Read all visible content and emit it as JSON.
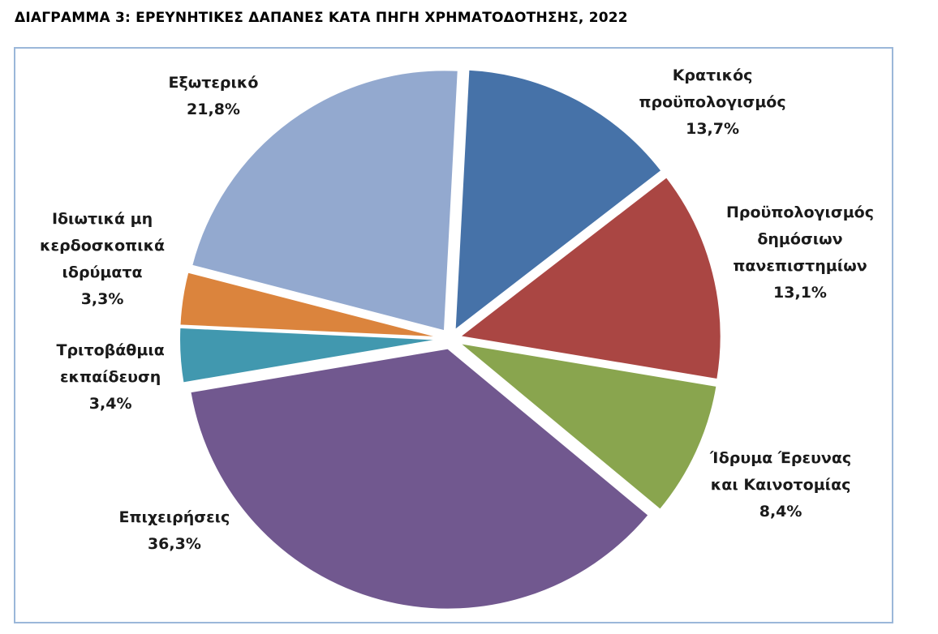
{
  "title": "ΔΙΑΓΡΑΜΜΑ 3:  ΕΡΕΥΝΗΤΙΚΕΣ ΔΑΠΑΝΕΣ ΚΑΤΑ ΠΗΓΗ ΧΡΗΜΑΤΟΔΟΤΗΣΗΣ, 2022",
  "chart_data": {
    "type": "pie",
    "title": "ΔΙΑΓΡΑΜΜΑ 3:  ΕΡΕΥΝΗΤΙΚΕΣ ΔΑΠΑΝΕΣ ΚΑΤΑ ΠΗΓΗ ΧΡΗΜΑΤΟΔΟΤΗΣΗΣ, 2022",
    "legend": "none",
    "slices": [
      {
        "label_lines": [
          "Κρατικός",
          "προϋπολογισμός"
        ],
        "value": 13.7,
        "value_text": "13,7%",
        "color": "#4672a8"
      },
      {
        "label_lines": [
          "Προϋπολογισμός",
          "δημόσιων",
          "πανεπιστημίων"
        ],
        "value": 13.1,
        "value_text": "13,1%",
        "color": "#aa4643"
      },
      {
        "label_lines": [
          "Ίδρυμα Έρευνας",
          "και Καινοτομίας"
        ],
        "value": 8.4,
        "value_text": "8,4%",
        "color": "#89a54e"
      },
      {
        "label_lines": [
          "Επιχειρήσεις"
        ],
        "value": 36.3,
        "value_text": "36,3%",
        "color": "#71588f"
      },
      {
        "label_lines": [
          "Τριτοβάθμια",
          "εκπαίδευση"
        ],
        "value": 3.4,
        "value_text": "3,4%",
        "color": "#4198af"
      },
      {
        "label_lines": [
          "Ιδιωτικά μη",
          "κερδοσκοπικά",
          "ιδρύματα"
        ],
        "value": 3.3,
        "value_text": "3,3%",
        "color": "#db843d"
      },
      {
        "label_lines": [
          "Εξωτερικό"
        ],
        "value": 21.8,
        "value_text": "21,8%",
        "color": "#93a9cf"
      }
    ]
  }
}
